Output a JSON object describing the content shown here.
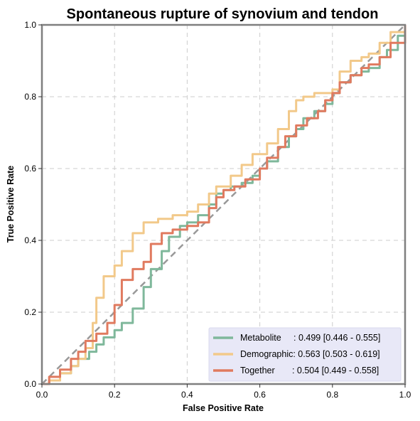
{
  "chart_data": {
    "type": "line",
    "title": "Spontaneous rupture of synovium and tendon",
    "xlabel": "False Positive Rate",
    "ylabel": "True Positive Rate",
    "xlim": [
      0,
      1
    ],
    "ylim": [
      0,
      1
    ],
    "x_ticks": [
      "0.0",
      "0.2",
      "0.4",
      "0.6",
      "0.8",
      "1.0"
    ],
    "y_ticks": [
      "0.0",
      "0.2",
      "0.4",
      "0.6",
      "0.8",
      "1.0"
    ],
    "grid": true,
    "legend_position": "bottom-right",
    "diagonal": true,
    "series": [
      {
        "name": "Metabolite",
        "legend_label": "Metabolite     : 0.499 [0.446 - 0.555]",
        "color": "#7fb89b",
        "points": [
          [
            0,
            0
          ],
          [
            0.02,
            0.01
          ],
          [
            0.05,
            0.03
          ],
          [
            0.08,
            0.05
          ],
          [
            0.1,
            0.07
          ],
          [
            0.13,
            0.09
          ],
          [
            0.15,
            0.11
          ],
          [
            0.17,
            0.13
          ],
          [
            0.2,
            0.15
          ],
          [
            0.22,
            0.17
          ],
          [
            0.25,
            0.21
          ],
          [
            0.28,
            0.27
          ],
          [
            0.3,
            0.32
          ],
          [
            0.33,
            0.37
          ],
          [
            0.35,
            0.41
          ],
          [
            0.38,
            0.44
          ],
          [
            0.4,
            0.45
          ],
          [
            0.43,
            0.47
          ],
          [
            0.46,
            0.5
          ],
          [
            0.48,
            0.53
          ],
          [
            0.5,
            0.54
          ],
          [
            0.52,
            0.55
          ],
          [
            0.55,
            0.56
          ],
          [
            0.58,
            0.58
          ],
          [
            0.6,
            0.6
          ],
          [
            0.62,
            0.62
          ],
          [
            0.65,
            0.66
          ],
          [
            0.68,
            0.69
          ],
          [
            0.7,
            0.71
          ],
          [
            0.72,
            0.74
          ],
          [
            0.75,
            0.76
          ],
          [
            0.78,
            0.78
          ],
          [
            0.8,
            0.81
          ],
          [
            0.82,
            0.84
          ],
          [
            0.85,
            0.86
          ],
          [
            0.88,
            0.87
          ],
          [
            0.9,
            0.88
          ],
          [
            0.93,
            0.91
          ],
          [
            0.95,
            0.93
          ],
          [
            0.98,
            0.97
          ],
          [
            1,
            1
          ]
        ]
      },
      {
        "name": "Demographic",
        "legend_label": "Demographic: 0.563 [0.503 - 0.619]",
        "color": "#f2c98a",
        "points": [
          [
            0,
            0
          ],
          [
            0.02,
            0.01
          ],
          [
            0.05,
            0.03
          ],
          [
            0.08,
            0.05
          ],
          [
            0.1,
            0.07
          ],
          [
            0.12,
            0.1
          ],
          [
            0.14,
            0.17
          ],
          [
            0.15,
            0.24
          ],
          [
            0.17,
            0.3
          ],
          [
            0.2,
            0.33
          ],
          [
            0.22,
            0.37
          ],
          [
            0.25,
            0.42
          ],
          [
            0.28,
            0.45
          ],
          [
            0.32,
            0.46
          ],
          [
            0.36,
            0.47
          ],
          [
            0.4,
            0.48
          ],
          [
            0.43,
            0.5
          ],
          [
            0.46,
            0.53
          ],
          [
            0.48,
            0.55
          ],
          [
            0.52,
            0.58
          ],
          [
            0.55,
            0.61
          ],
          [
            0.58,
            0.64
          ],
          [
            0.62,
            0.67
          ],
          [
            0.65,
            0.71
          ],
          [
            0.68,
            0.76
          ],
          [
            0.7,
            0.79
          ],
          [
            0.72,
            0.8
          ],
          [
            0.75,
            0.81
          ],
          [
            0.78,
            0.81
          ],
          [
            0.8,
            0.82
          ],
          [
            0.82,
            0.87
          ],
          [
            0.85,
            0.9
          ],
          [
            0.88,
            0.91
          ],
          [
            0.9,
            0.92
          ],
          [
            0.93,
            0.95
          ],
          [
            0.96,
            0.98
          ],
          [
            1,
            1
          ]
        ]
      },
      {
        "name": "Together",
        "legend_label": "Together       : 0.504 [0.449 - 0.558]",
        "color": "#e07a5f",
        "points": [
          [
            0,
            0
          ],
          [
            0.02,
            0.02
          ],
          [
            0.05,
            0.04
          ],
          [
            0.08,
            0.07
          ],
          [
            0.1,
            0.09
          ],
          [
            0.12,
            0.12
          ],
          [
            0.15,
            0.14
          ],
          [
            0.18,
            0.17
          ],
          [
            0.2,
            0.22
          ],
          [
            0.22,
            0.29
          ],
          [
            0.25,
            0.32
          ],
          [
            0.28,
            0.34
          ],
          [
            0.3,
            0.39
          ],
          [
            0.33,
            0.42
          ],
          [
            0.36,
            0.43
          ],
          [
            0.4,
            0.44
          ],
          [
            0.43,
            0.45
          ],
          [
            0.46,
            0.49
          ],
          [
            0.48,
            0.52
          ],
          [
            0.5,
            0.54
          ],
          [
            0.53,
            0.55
          ],
          [
            0.56,
            0.57
          ],
          [
            0.6,
            0.6
          ],
          [
            0.62,
            0.63
          ],
          [
            0.65,
            0.66
          ],
          [
            0.67,
            0.69
          ],
          [
            0.7,
            0.72
          ],
          [
            0.73,
            0.74
          ],
          [
            0.76,
            0.76
          ],
          [
            0.78,
            0.79
          ],
          [
            0.8,
            0.81
          ],
          [
            0.82,
            0.84
          ],
          [
            0.85,
            0.86
          ],
          [
            0.88,
            0.88
          ],
          [
            0.9,
            0.89
          ],
          [
            0.93,
            0.91
          ],
          [
            0.96,
            0.95
          ],
          [
            1,
            1
          ]
        ]
      }
    ]
  }
}
